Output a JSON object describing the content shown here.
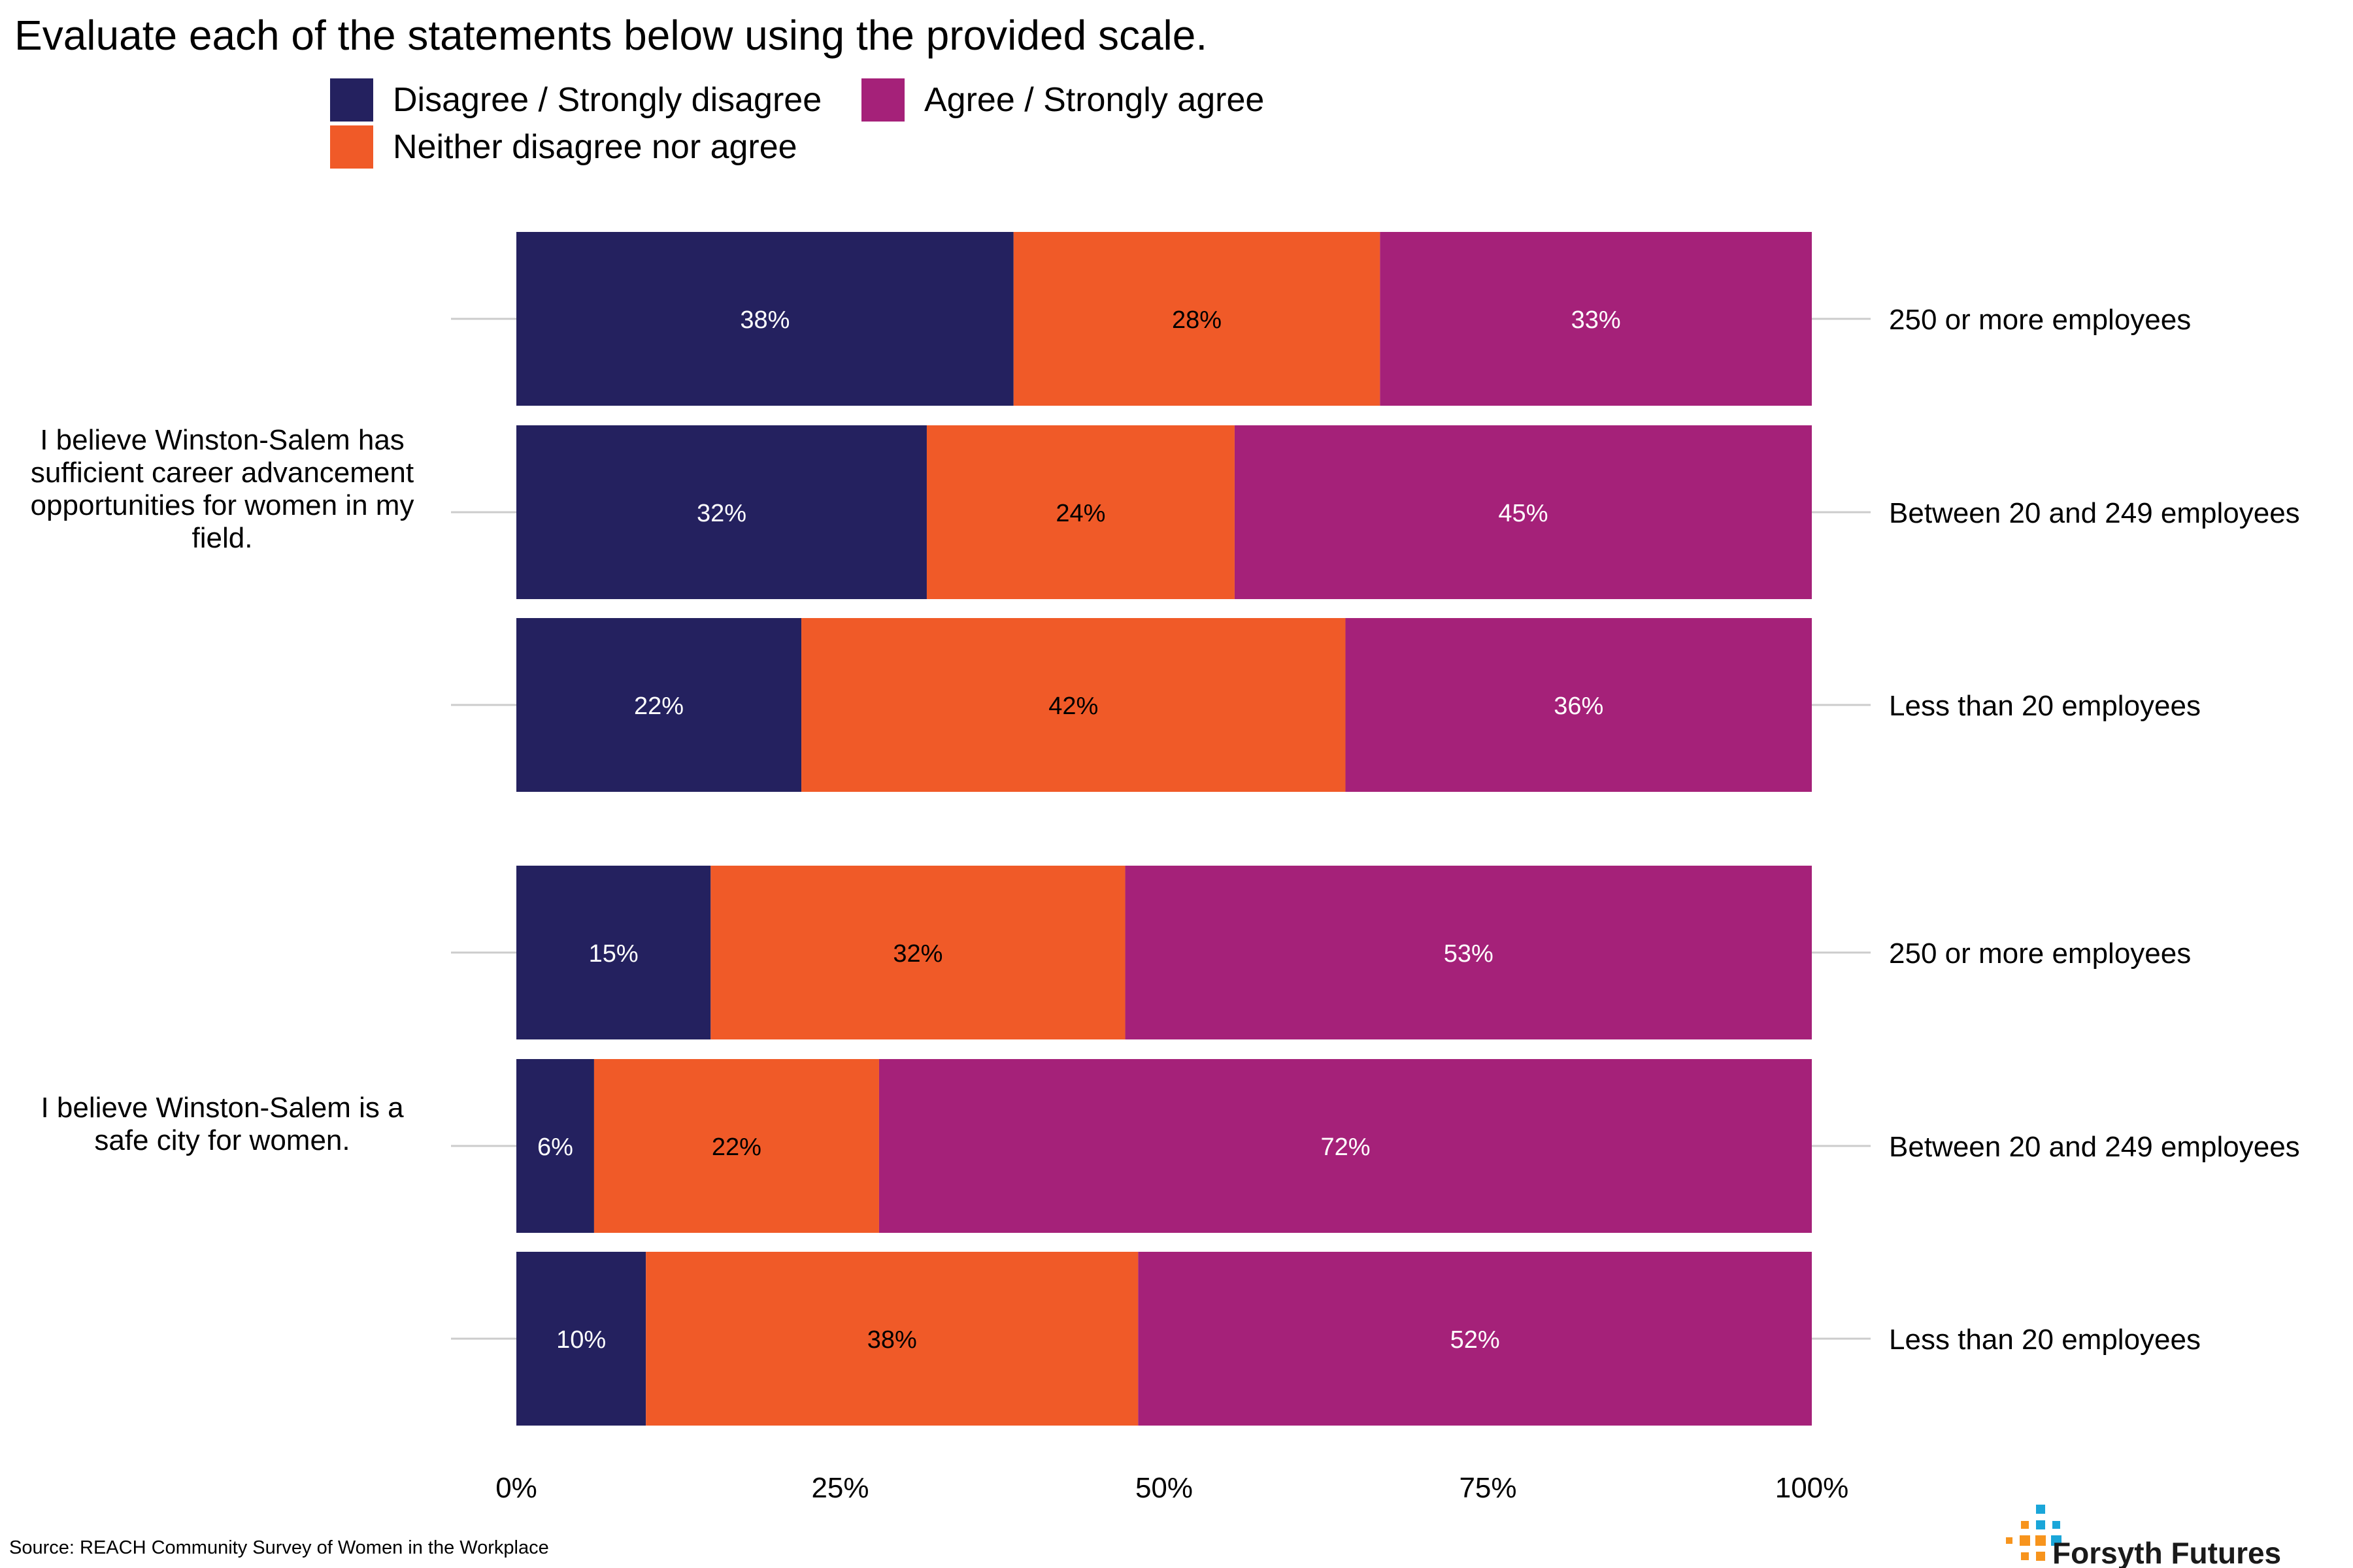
{
  "chart_data": {
    "type": "bar",
    "orientation": "horizontal",
    "stacked": true,
    "title": "Evaluate each of the statements below using the provided scale.",
    "xlim": [
      0,
      100
    ],
    "x_ticks": [
      "0%",
      "25%",
      "50%",
      "75%",
      "100%"
    ],
    "legend_position": "top",
    "series": [
      {
        "name": "Disagree / Strongly disagree",
        "color": "#24215F"
      },
      {
        "name": "Neither disagree nor agree",
        "color": "#F05A28"
      },
      {
        "name": "Agree / Strongly agree",
        "color": "#A52179"
      }
    ],
    "groups": [
      {
        "label": "I believe Winston-Salem has sufficient career advancement opportunities for women in my field.",
        "label_lines": [
          "I believe Winston-Salem has",
          "sufficient career advancement",
          "opportunities for women in my",
          "field."
        ],
        "rows": [
          {
            "category": "250 or more employees",
            "values": [
              38,
              28,
              33
            ],
            "labels": [
              "38%",
              "28%",
              "33%"
            ]
          },
          {
            "category": "Between 20 and 249 employees",
            "values": [
              32,
              24,
              45
            ],
            "labels": [
              "32%",
              "24%",
              "45%"
            ]
          },
          {
            "category": "Less than 20 employees",
            "values": [
              22,
              42,
              36
            ],
            "labels": [
              "22%",
              "42%",
              "36%"
            ]
          }
        ]
      },
      {
        "label": "I believe Winston-Salem is a safe city for women.",
        "label_lines": [
          "I believe Winston-Salem is a",
          "safe city for women."
        ],
        "rows": [
          {
            "category": "250 or more employees",
            "values": [
              15,
              32,
              53
            ],
            "labels": [
              "15%",
              "32%",
              "53%"
            ]
          },
          {
            "category": "Between 20 and 249 employees",
            "values": [
              6,
              22,
              72
            ],
            "labels": [
              "6%",
              "22%",
              "72%"
            ]
          },
          {
            "category": "Less than 20 employees",
            "values": [
              10,
              38,
              52
            ],
            "labels": [
              "10%",
              "38%",
              "52%"
            ]
          }
        ]
      }
    ],
    "label_text_colors": [
      "#ffffff",
      "#000000",
      "#ffffff"
    ]
  },
  "source": "Source: REACH Community Survey of Women in the Workplace",
  "logo": {
    "text": "Forsyth Futures",
    "dot_colors": [
      "#1AA6D9",
      "#F7941D"
    ]
  }
}
